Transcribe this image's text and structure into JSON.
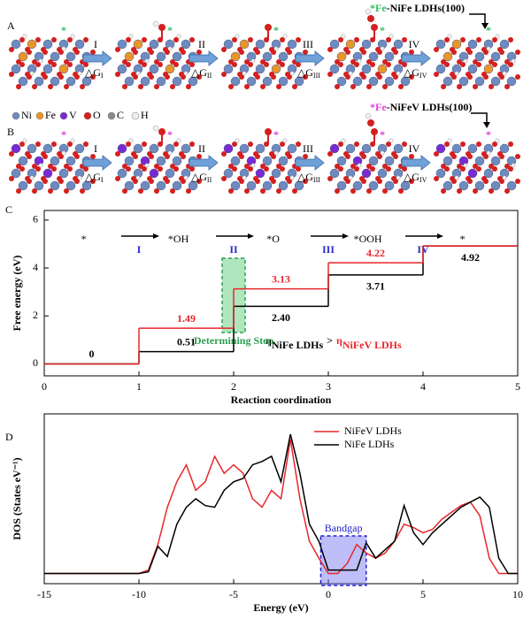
{
  "panel_a": {
    "label": "A",
    "caption": {
      "site": "*Fe",
      "text": "-NiFe LDHs(100)"
    },
    "site_mark": "*",
    "steps": [
      "I",
      "II",
      "III",
      "IV"
    ],
    "delta": "△G"
  },
  "panel_b": {
    "label": "B",
    "caption": {
      "site": "*Fe",
      "text": "-NiFeV LDHs(100)"
    },
    "site_mark": "*",
    "steps": [
      "I",
      "II",
      "III",
      "IV"
    ],
    "delta": "△G",
    "legend": [
      {
        "name": "Ni",
        "color": "#6e8bbf"
      },
      {
        "name": "Fe",
        "color": "#e8962a"
      },
      {
        "name": "V",
        "color": "#7a2ad0"
      },
      {
        "name": "O",
        "color": "#d42020"
      },
      {
        "name": "C",
        "color": "#8a8a8a"
      },
      {
        "name": "H",
        "color": "#eeeeee"
      }
    ]
  },
  "chart_data": [
    {
      "type": "step",
      "panel": "C",
      "x": [
        0,
        1,
        2,
        3,
        4
      ],
      "xlim": [
        0,
        5
      ],
      "xticks": [
        0,
        1,
        2,
        3,
        4,
        5
      ],
      "ylim": [
        -0.5,
        6.4
      ],
      "yticks": [
        0,
        2,
        4,
        6
      ],
      "xlabel": "Reaction coordination",
      "ylabel": "Free energy (eV)",
      "series": [
        {
          "name": "NiFe LDHs",
          "color": "#000000",
          "values": [
            0,
            0.51,
            2.4,
            3.71,
            4.92
          ],
          "value_labels": [
            "0",
            "0.51",
            "2.40",
            "3.71",
            "4.92"
          ]
        },
        {
          "name": "NiFeV LDHs",
          "color": "#e8262b",
          "values": [
            0,
            1.49,
            3.13,
            4.22,
            4.92
          ],
          "value_labels": [
            null,
            "1.49",
            "3.13",
            "4.22",
            null
          ]
        }
      ],
      "species": [
        "*",
        "*OH",
        "*O",
        "*OOH",
        "*"
      ],
      "steps": [
        "I",
        "II",
        "III",
        "IV"
      ],
      "annotation": {
        "text": "Determining Step",
        "x": 2
      },
      "eta": {
        "symbol": "η",
        "relation": ">"
      }
    },
    {
      "type": "line",
      "panel": "D",
      "x": [
        -15,
        -10,
        -9.5,
        -9,
        -8.5,
        -8,
        -7.5,
        -7,
        -6.5,
        -6,
        -5.5,
        -5,
        -4.5,
        -4,
        -3.5,
        -3,
        -2.5,
        -2,
        -1.5,
        -1,
        -0.5,
        0,
        0.5,
        1,
        1.5,
        2,
        2.5,
        3,
        3.5,
        4,
        4.5,
        5,
        5.5,
        6,
        6.5,
        7,
        7.5,
        8,
        8.5,
        9,
        9.5,
        10
      ],
      "xlim": [
        -15,
        10
      ],
      "xticks": [
        -15,
        -10,
        -5,
        0,
        5,
        10
      ],
      "ylim": [
        0,
        10
      ],
      "xlabel": "Energy (eV)",
      "ylabel": "DOS (States eV⁻¹)",
      "legend": "upper right",
      "series": [
        {
          "name": "NiFeV LDHs",
          "color": "#e8262b",
          "values": [
            0.6,
            0.6,
            0.8,
            2.3,
            4.5,
            6,
            7,
            5.5,
            6,
            7.5,
            6.5,
            7,
            6.5,
            5,
            4.5,
            5.5,
            5,
            8.5,
            5,
            2.5,
            1.5,
            0.6,
            0.6,
            1.2,
            2.3,
            1.8,
            1.5,
            1.8,
            2.5,
            3.5,
            3.3,
            3,
            3.2,
            3.8,
            4.2,
            4.6,
            4.8,
            4,
            1.5,
            0.6,
            0.6,
            0.6
          ]
        },
        {
          "name": "NiFe LDHs",
          "color": "#000000",
          "values": [
            0.6,
            0.6,
            0.7,
            2.2,
            1.6,
            3.5,
            4.5,
            5,
            4.6,
            4.5,
            5.5,
            6,
            6.2,
            7,
            7.2,
            7.5,
            6,
            8.8,
            6.5,
            3.5,
            2.5,
            0.8,
            0.8,
            0.8,
            0.8,
            2.4,
            1.5,
            2,
            2.5,
            4.6,
            3,
            2.3,
            3,
            3.5,
            4,
            4.5,
            4.8,
            5.1,
            4.5,
            1.5,
            0.6,
            0.6
          ]
        }
      ],
      "bandgap": {
        "text": "Bandgap",
        "x_range": [
          -0.4,
          2.0
        ]
      }
    }
  ]
}
